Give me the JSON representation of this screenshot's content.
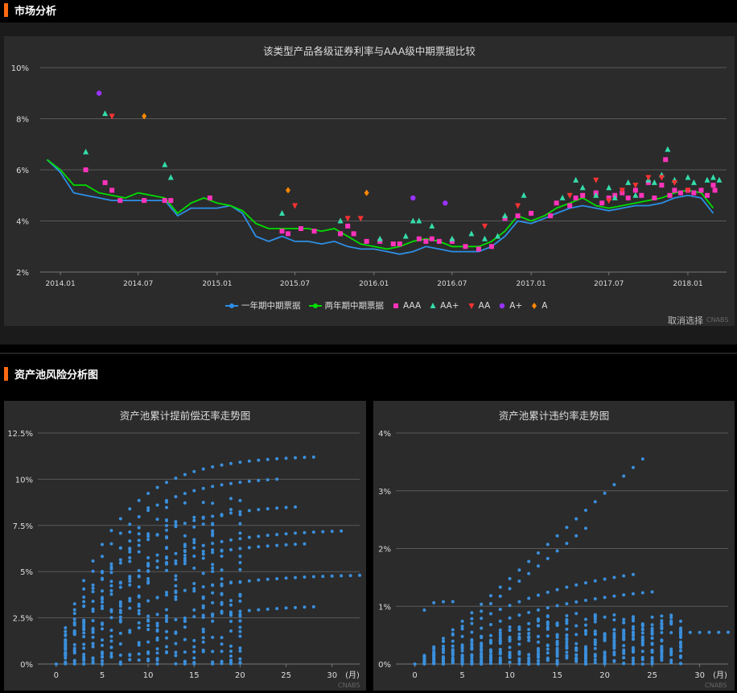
{
  "sections": {
    "market": "市场分析",
    "risk": "资产池风险分析图"
  },
  "colors": {
    "accent": "#ff6a13",
    "one_year": "#2c8fe6",
    "two_year": "#00dd00",
    "AAA": "#ff33bb",
    "AA+": "#33ddaa",
    "AA": "#ff3333",
    "A+": "#9933ff",
    "A": "#ff8800",
    "scatter": "#3a8fdc"
  },
  "market_chart": {
    "cancel_label": "取消选择",
    "watermark": "CNABS"
  },
  "prepay_chart": {
    "watermark": "CNABS"
  },
  "default_chart": {
    "watermark": "CNABS"
  },
  "chart_data": [
    {
      "type": "line",
      "title": "该类型产品各级证券利率与AAA级中期票据比较",
      "x_type": "date",
      "xlim": [
        "2013-11-15",
        "2018-04-01"
      ],
      "xticks": [
        "2014.01",
        "2014.07",
        "2015.01",
        "2015.07",
        "2016.01",
        "2016.07",
        "2017.01",
        "2017.07",
        "2018.01"
      ],
      "xtick_dates": [
        "2014-01-01",
        "2014-07-01",
        "2015-01-01",
        "2015-07-01",
        "2016-01-01",
        "2016-07-01",
        "2017-01-01",
        "2017-07-01",
        "2018-01-01"
      ],
      "ylim": [
        2,
        10
      ],
      "yticks": [
        "2%",
        "4%",
        "6%",
        "8%",
        "10%"
      ],
      "grid": true,
      "legend_position": "bottom",
      "series": [
        {
          "name": "一年期中期票据",
          "kind": "line",
          "x": [
            "2013-12-01",
            "2014-01-01",
            "2014-02-01",
            "2014-03-01",
            "2014-04-01",
            "2014-05-01",
            "2014-06-01",
            "2014-07-01",
            "2014-08-01",
            "2014-09-01",
            "2014-10-01",
            "2014-11-01",
            "2014-12-01",
            "2015-01-01",
            "2015-02-01",
            "2015-03-01",
            "2015-04-01",
            "2015-05-01",
            "2015-06-01",
            "2015-07-01",
            "2015-08-01",
            "2015-09-01",
            "2015-10-01",
            "2015-11-01",
            "2015-12-01",
            "2016-01-01",
            "2016-02-01",
            "2016-03-01",
            "2016-04-01",
            "2016-05-01",
            "2016-06-01",
            "2016-07-01",
            "2016-08-01",
            "2016-09-01",
            "2016-10-01",
            "2016-11-01",
            "2016-12-01",
            "2017-01-01",
            "2017-02-01",
            "2017-03-01",
            "2017-04-01",
            "2017-05-01",
            "2017-06-01",
            "2017-07-01",
            "2017-08-01",
            "2017-09-01",
            "2017-10-01",
            "2017-11-01",
            "2017-12-01",
            "2018-01-01",
            "2018-02-01",
            "2018-03-01"
          ],
          "y": [
            6.4,
            5.9,
            5.1,
            5.0,
            4.9,
            4.8,
            4.8,
            4.8,
            4.8,
            4.8,
            4.2,
            4.5,
            4.5,
            4.5,
            4.6,
            4.3,
            3.4,
            3.2,
            3.4,
            3.2,
            3.2,
            3.1,
            3.2,
            3.0,
            2.9,
            2.9,
            2.8,
            2.7,
            2.8,
            3.0,
            2.9,
            2.8,
            2.8,
            2.8,
            3.0,
            3.4,
            4.0,
            3.9,
            4.1,
            4.3,
            4.5,
            4.6,
            4.5,
            4.4,
            4.5,
            4.6,
            4.6,
            4.7,
            4.9,
            5.0,
            4.9,
            4.3
          ]
        },
        {
          "name": "两年期中期票据",
          "kind": "line",
          "x": [
            "2013-12-01",
            "2014-01-01",
            "2014-02-01",
            "2014-03-01",
            "2014-04-01",
            "2014-05-01",
            "2014-06-01",
            "2014-07-01",
            "2014-08-01",
            "2014-09-01",
            "2014-10-01",
            "2014-11-01",
            "2014-12-01",
            "2015-01-01",
            "2015-02-01",
            "2015-03-01",
            "2015-04-01",
            "2015-05-01",
            "2015-06-01",
            "2015-07-01",
            "2015-08-01",
            "2015-09-01",
            "2015-10-01",
            "2015-11-01",
            "2015-12-01",
            "2016-01-01",
            "2016-02-01",
            "2016-03-01",
            "2016-04-01",
            "2016-05-01",
            "2016-06-01",
            "2016-07-01",
            "2016-08-01",
            "2016-09-01",
            "2016-10-01",
            "2016-11-01",
            "2016-12-01",
            "2017-01-01",
            "2017-02-01",
            "2017-03-01",
            "2017-04-01",
            "2017-05-01",
            "2017-06-01",
            "2017-07-01",
            "2017-08-01",
            "2017-09-01",
            "2017-10-01",
            "2017-11-01",
            "2017-12-01",
            "2018-01-01",
            "2018-02-01",
            "2018-03-01"
          ],
          "y": [
            6.4,
            6.0,
            5.4,
            5.4,
            5.1,
            5.0,
            4.9,
            5.1,
            5.0,
            4.9,
            4.3,
            4.7,
            4.9,
            4.7,
            4.6,
            4.4,
            3.9,
            3.7,
            3.7,
            3.7,
            3.7,
            3.6,
            3.7,
            3.4,
            3.1,
            3.0,
            2.9,
            3.0,
            3.2,
            3.3,
            3.2,
            3.0,
            3.0,
            3.0,
            3.2,
            3.6,
            4.2,
            4.0,
            4.2,
            4.5,
            4.7,
            4.9,
            4.6,
            4.5,
            4.6,
            4.7,
            4.8,
            4.9,
            5.1,
            5.2,
            5.1,
            4.5
          ]
        },
        {
          "name": "AAA",
          "kind": "square",
          "x": [
            "2014-03-01",
            "2014-04-15",
            "2014-05-01",
            "2014-05-20",
            "2014-07-15",
            "2014-09-01",
            "2014-09-15",
            "2014-12-15",
            "2015-06-01",
            "2015-06-15",
            "2015-07-15",
            "2015-08-15",
            "2015-10-15",
            "2015-11-01",
            "2015-11-15",
            "2015-12-15",
            "2016-01-15",
            "2016-02-15",
            "2016-03-01",
            "2016-04-15",
            "2016-05-01",
            "2016-05-15",
            "2016-06-01",
            "2016-07-01",
            "2016-08-01",
            "2016-09-01",
            "2016-10-01",
            "2016-11-01",
            "2016-12-01",
            "2017-01-01",
            "2017-02-15",
            "2017-03-01",
            "2017-04-01",
            "2017-04-15",
            "2017-05-01",
            "2017-06-01",
            "2017-06-15",
            "2017-07-01",
            "2017-07-15",
            "2017-08-01",
            "2017-08-15",
            "2017-09-01",
            "2017-09-15",
            "2017-10-01",
            "2017-10-15",
            "2017-11-01",
            "2017-11-10",
            "2017-11-20",
            "2017-12-01",
            "2017-12-15",
            "2018-01-01",
            "2018-01-15",
            "2018-02-01",
            "2018-02-15",
            "2018-03-01",
            "2018-03-05"
          ],
          "y": [
            6.0,
            5.5,
            5.2,
            4.8,
            4.8,
            4.8,
            4.8,
            4.9,
            3.6,
            3.5,
            3.7,
            3.6,
            3.5,
            3.8,
            3.5,
            3.2,
            3.2,
            3.1,
            3.1,
            3.3,
            3.2,
            3.3,
            3.2,
            3.2,
            3.0,
            2.9,
            3.0,
            4.1,
            4.2,
            4.3,
            4.2,
            4.7,
            4.6,
            4.9,
            5.0,
            5.1,
            4.7,
            4.9,
            5.0,
            5.1,
            4.9,
            5.2,
            5.0,
            5.5,
            4.9,
            5.4,
            6.4,
            5.0,
            5.2,
            5.1,
            5.2,
            5.1,
            5.2,
            5.0,
            5.4,
            5.2
          ]
        },
        {
          "name": "AA+",
          "kind": "triangle",
          "x": [
            "2014-03-01",
            "2014-04-15",
            "2014-09-01",
            "2014-09-15",
            "2015-06-01",
            "2015-10-15",
            "2016-01-15",
            "2016-03-15",
            "2016-04-01",
            "2016-04-15",
            "2016-05-15",
            "2016-07-01",
            "2016-08-15",
            "2016-09-15",
            "2016-10-15",
            "2016-11-01",
            "2016-12-15",
            "2017-03-15",
            "2017-04-15",
            "2017-05-01",
            "2017-06-01",
            "2017-07-01",
            "2017-07-15",
            "2017-08-15",
            "2017-09-01",
            "2017-10-01",
            "2017-10-15",
            "2017-11-01",
            "2017-11-15",
            "2017-12-01",
            "2018-01-01",
            "2018-01-15",
            "2018-02-15",
            "2018-03-01",
            "2018-03-15"
          ],
          "y": [
            6.7,
            8.2,
            6.2,
            5.7,
            4.3,
            4.0,
            3.3,
            3.4,
            4.0,
            4.0,
            3.8,
            3.3,
            3.5,
            3.3,
            3.4,
            4.2,
            5.0,
            4.9,
            5.6,
            5.3,
            5.0,
            5.3,
            4.9,
            5.5,
            5.0,
            5.6,
            5.5,
            5.8,
            6.8,
            5.6,
            5.7,
            5.5,
            5.6,
            5.7,
            5.6
          ]
        },
        {
          "name": "AA",
          "kind": "triangle-down",
          "x": [
            "2014-05-01",
            "2015-07-01",
            "2015-11-01",
            "2015-12-01",
            "2016-09-15",
            "2016-12-01",
            "2017-04-01",
            "2017-06-01",
            "2017-07-01",
            "2017-08-01",
            "2017-09-01",
            "2017-10-01",
            "2017-11-01",
            "2017-12-01",
            "2018-01-01"
          ],
          "y": [
            8.1,
            4.6,
            4.1,
            4.1,
            3.8,
            4.6,
            5.0,
            5.6,
            4.8,
            5.2,
            5.4,
            5.7,
            5.7,
            5.5,
            5.2
          ]
        },
        {
          "name": "A+",
          "kind": "circle",
          "x": [
            "2014-04-01",
            "2016-04-01",
            "2016-06-15"
          ],
          "y": [
            9.0,
            4.9,
            4.7
          ]
        },
        {
          "name": "A",
          "kind": "diamond",
          "x": [
            "2014-07-15",
            "2015-06-15",
            "2015-12-15"
          ],
          "y": [
            8.1,
            5.2,
            5.1
          ]
        }
      ]
    },
    {
      "type": "scatter",
      "title": "资产池累计提前偿还率走势图",
      "x_unit": "(月)",
      "xlim": [
        -2,
        33
      ],
      "xticks": [
        0,
        5,
        10,
        15,
        20,
        25,
        30
      ],
      "ylim": [
        0,
        12.5
      ],
      "yticks": [
        "0%",
        "2.5%",
        "5%",
        "7.5%",
        "10%",
        "12.5%"
      ],
      "grid": true,
      "curves": [
        {
          "max_month": 28,
          "final": 11.2,
          "k": 0.17
        },
        {
          "max_month": 24,
          "final": 10.0,
          "k": 0.17
        },
        {
          "max_month": 26,
          "final": 8.5,
          "k": 0.15
        },
        {
          "max_month": 31,
          "final": 7.2,
          "k": 0.13
        },
        {
          "max_month": 27,
          "final": 6.5,
          "k": 0.14
        },
        {
          "max_month": 33,
          "final": 4.8,
          "k": 0.12
        },
        {
          "max_month": 28,
          "final": 3.1,
          "k": 0.1
        },
        {
          "max_month": 20,
          "final": 0.7,
          "k": 0.15
        }
      ],
      "cloud": {
        "months": 20,
        "max": 9.0
      }
    },
    {
      "type": "scatter",
      "title": "资产池累计违约率走势图",
      "x_unit": "(月)",
      "xlim": [
        -2,
        33
      ],
      "xticks": [
        0,
        5,
        10,
        15,
        20,
        25,
        30
      ],
      "ylim": [
        0,
        4
      ],
      "yticks": [
        "0%",
        "1%",
        "2%",
        "3%",
        "4%"
      ],
      "grid": true,
      "curves": [
        {
          "max_month": 24,
          "final": 3.55,
          "k": 0
        },
        {
          "max_month": 18,
          "final": 2.35,
          "k": 0
        },
        {
          "max_month": 23,
          "final": 1.55,
          "k": 0.08
        },
        {
          "max_month": 25,
          "final": 1.25,
          "k": 0.08
        },
        {
          "max_month": 33,
          "final": 0.55,
          "k": 0.15
        },
        {
          "max_month": 4,
          "final": 1.08,
          "k": 2
        }
      ],
      "cloud": {
        "months": 28,
        "max": 0.9
      }
    }
  ]
}
